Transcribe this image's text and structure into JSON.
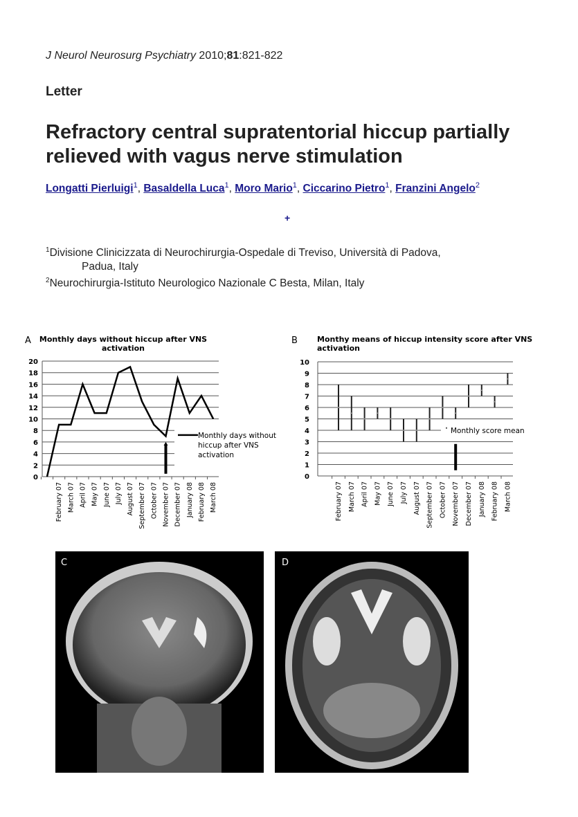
{
  "header": {
    "journal": "J Neurol Neurosurg Psychiatry",
    "year_prefix": " 2010;",
    "volume": "81",
    "pages": ":821-822",
    "section": "Letter",
    "title": "Refractory central supratentorial hiccup partially relieved with vagus nerve stimulation"
  },
  "authors": [
    {
      "name": "Longatti Pierluigi",
      "aff": "1"
    },
    {
      "name": "Basaldella Luca",
      "aff": "1"
    },
    {
      "name": "Moro Mario",
      "aff": "1"
    },
    {
      "name": "Ciccarino Pietro",
      "aff": "1"
    },
    {
      "name": "Franzini Angelo",
      "aff": "2"
    }
  ],
  "expand_symbol": "+",
  "affiliations": [
    {
      "num": "1",
      "line1": "Divisione Clinicizzata di Neurochirurgia-Ospedale di Treviso, Università di Padova,",
      "line2": "Padua, Italy"
    },
    {
      "num": "2",
      "line1": "Neurochirurgia-Istituto Neurologico Nazionale C Besta, Milan, Italy"
    }
  ],
  "colors": {
    "link": "#1a1a8c",
    "line": "#000000",
    "grid": "#555555"
  },
  "chart_data": [
    {
      "panel": "A",
      "type": "line",
      "title": "Monthly days without hiccup after VNS activation",
      "categories": [
        "",
        "February 07",
        "March 07",
        "April 07",
        "May 07",
        "June 07",
        "July 07",
        "August 07",
        "September 07",
        "October 07",
        "November 07",
        "December 07",
        "January 08",
        "February 08",
        "March 08"
      ],
      "series": [
        {
          "name": "Monthly days without hiccup after VNS activation",
          "values": [
            0,
            9,
            9,
            16,
            11,
            11,
            18,
            19,
            13,
            9,
            7,
            17,
            11,
            14,
            10
          ]
        }
      ],
      "yticks": [
        0,
        2,
        4,
        6,
        8,
        10,
        12,
        14,
        16,
        18,
        20
      ],
      "ylim": [
        0,
        20
      ],
      "grid": true,
      "legend": "right",
      "arrow_at": "November 07"
    },
    {
      "panel": "B",
      "type": "range",
      "title": "Monthy means of hiccup intensity score after VNS activation",
      "categories": [
        "February 07",
        "March 07",
        "April 07",
        "May 07",
        "June 07",
        "July 07",
        "August 07",
        "September 07",
        "October 07",
        "November 07",
        "December 07",
        "January 08",
        "February 08",
        "March 08"
      ],
      "low": [
        4,
        4,
        4,
        5,
        4,
        3,
        3,
        4,
        5,
        5,
        6,
        7,
        6,
        8
      ],
      "high": [
        8,
        7,
        6,
        6,
        6,
        5,
        5,
        6,
        7,
        6,
        8,
        8,
        7,
        9
      ],
      "mean": [
        6,
        5.5,
        5,
        5.5,
        5,
        4,
        4,
        5,
        6,
        5.5,
        7,
        7.5,
        6.5,
        8.5
      ],
      "legend_label": "Monthly score mean",
      "yticks": [
        0,
        1,
        2,
        3,
        4,
        5,
        6,
        7,
        8,
        9,
        10
      ],
      "ylim": [
        0,
        10
      ],
      "grid": true,
      "legend": "right",
      "arrow_at": "November 07"
    }
  ],
  "figures": {
    "c_label": "C",
    "d_label": "D"
  }
}
